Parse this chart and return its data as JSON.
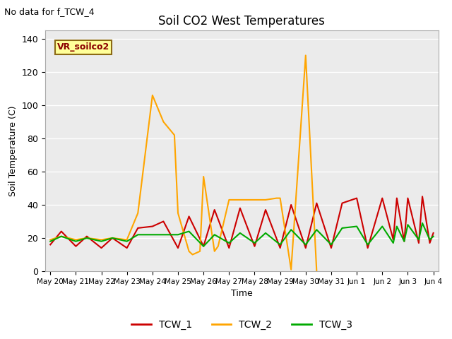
{
  "title": "Soil CO2 West Temperatures",
  "xlabel": "Time",
  "ylabel": "Soil Temperature (C)",
  "no_data_text": "No data for f_TCW_4",
  "annotation_text": "VR_soilco2",
  "ylim": [
    0,
    145
  ],
  "yticks": [
    0,
    20,
    40,
    60,
    80,
    100,
    120,
    140
  ],
  "fig_bg": "#ffffff",
  "plot_bg": "#ebebeb",
  "colors": {
    "TCW_1": "#cc0000",
    "TCW_2": "#ffa500",
    "TCW_3": "#00aa00"
  },
  "x_labels": [
    "May 20",
    "May 21",
    "May 22",
    "May 23",
    "May 24",
    "May 25",
    "May 26",
    "May 27",
    "May 28",
    "May 29",
    "May 30",
    "May 31",
    "Jun 1",
    "Jun 2",
    "Jun 3",
    "Jun 4"
  ],
  "TCW_1_x": [
    0,
    0.43,
    1,
    1.43,
    2,
    2.43,
    3,
    3.43,
    4,
    4.43,
    5,
    5.43,
    6,
    6.43,
    7,
    7.43,
    8,
    8.43,
    9,
    9.43,
    10,
    10.43,
    11,
    11.43,
    12,
    12.43,
    13,
    13.43,
    13.57,
    13.86,
    14,
    14.43,
    14.57,
    14.86,
    15
  ],
  "TCW_1_y": [
    16,
    24,
    15,
    21,
    14,
    20,
    14,
    26,
    27,
    30,
    14,
    33,
    15,
    37,
    14,
    38,
    15,
    37,
    14,
    40,
    14,
    41,
    14,
    41,
    44,
    14,
    44,
    19,
    44,
    18,
    44,
    17,
    45,
    17,
    23
  ],
  "TCW_2_x": [
    0,
    0.43,
    1,
    1.43,
    2,
    2.43,
    3,
    3.43,
    4,
    4.43,
    4.86,
    5,
    5.43,
    5.57,
    5.86,
    6,
    6.43,
    6.57,
    7,
    7.43,
    7.86,
    8,
    8.43,
    8.86,
    9,
    9.43,
    10,
    10.43
  ],
  "TCW_2_y": [
    19,
    21,
    19,
    20,
    19,
    20,
    19,
    35,
    106,
    90,
    82,
    35,
    12,
    10,
    12,
    57,
    12,
    15,
    43,
    43,
    43,
    43,
    43,
    44,
    44,
    1,
    130,
    0
  ],
  "TCW_3_x": [
    0,
    0.43,
    1,
    1.43,
    2,
    2.43,
    3,
    3.43,
    4,
    4.43,
    5,
    5.43,
    6,
    6.43,
    7,
    7.43,
    8,
    8.43,
    9,
    9.43,
    10,
    10.43,
    11,
    11.43,
    12,
    12.43,
    13,
    13.43,
    13.57,
    13.86,
    14,
    14.43,
    14.57,
    14.86,
    15
  ],
  "TCW_3_y": [
    18,
    21,
    18,
    20,
    18,
    20,
    18,
    22,
    22,
    22,
    22,
    24,
    15,
    22,
    17,
    23,
    17,
    23,
    16,
    25,
    16,
    25,
    16,
    26,
    27,
    16,
    27,
    17,
    27,
    18,
    28,
    19,
    29,
    19,
    21
  ]
}
